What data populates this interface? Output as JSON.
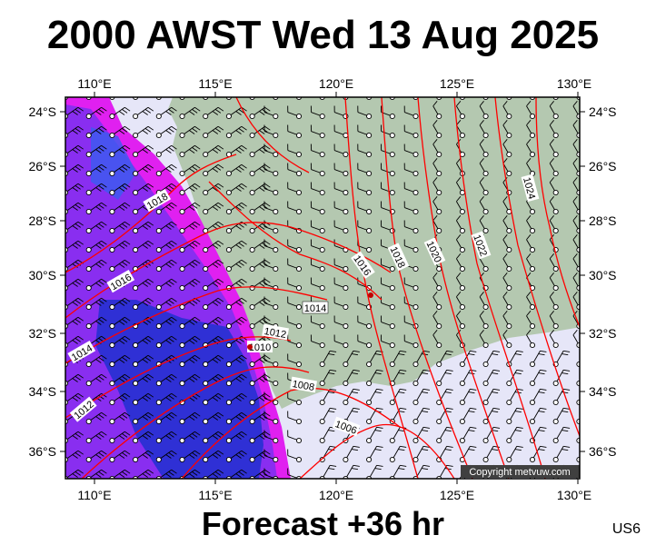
{
  "header": {
    "title": "2000 AWST Wed 13 Aug 2025"
  },
  "footer": {
    "forecast": "Forecast +36 hr",
    "code": "US6"
  },
  "map": {
    "lon_ticks": [
      "110°E",
      "115°E",
      "120°E",
      "125°E",
      "130°E"
    ],
    "lat_ticks": [
      "24°S",
      "26°S",
      "28°S",
      "30°S",
      "32°S",
      "34°S",
      "36°S"
    ],
    "copyright": "Copyright metvuw.com",
    "isobar_labels": [
      "1018",
      "1016",
      "1014",
      "1012",
      "1010",
      "1008",
      "1006",
      "1016",
      "1018",
      "1020",
      "1022",
      "1024",
      "1014"
    ],
    "colors": {
      "land": "#b4c8b0",
      "ocean": "#e6e6f8",
      "isobar": "#ff0000",
      "rain_heavy": "#2030d0",
      "rain_medium": "#8030f0",
      "rain_light": "#e020f0"
    }
  }
}
